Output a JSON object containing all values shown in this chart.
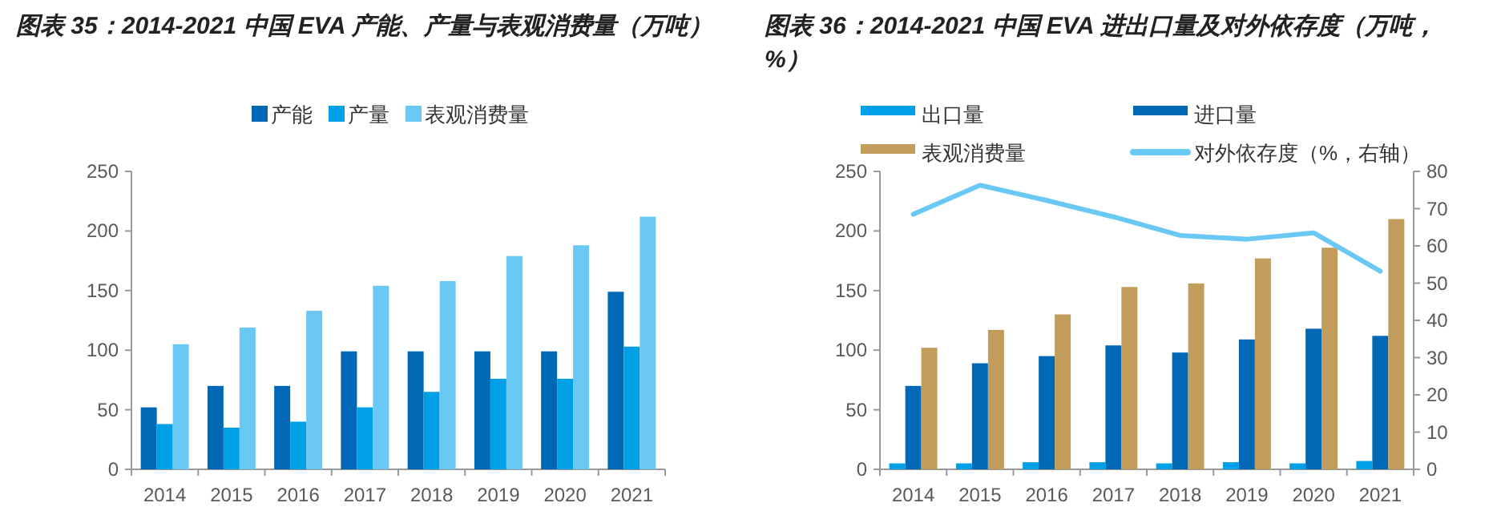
{
  "chart_data": [
    {
      "type": "bar",
      "title": "图表 35：2014-2021 中国 EVA 产能、产量与表观消费量（万吨）",
      "categories": [
        "2014",
        "2015",
        "2016",
        "2017",
        "2018",
        "2019",
        "2020",
        "2021"
      ],
      "series": [
        {
          "name": "产能",
          "color": "#0068b5",
          "values": [
            52,
            70,
            70,
            99,
            99,
            99,
            99,
            149
          ]
        },
        {
          "name": "产量",
          "color": "#00a0e6",
          "values": [
            38,
            35,
            40,
            52,
            65,
            76,
            76,
            103
          ]
        },
        {
          "name": "表观消费量",
          "color": "#6ac8f5",
          "values": [
            105,
            119,
            133,
            154,
            158,
            179,
            188,
            212
          ]
        }
      ],
      "ylim": [
        0,
        250
      ],
      "yticks": [
        0,
        50,
        100,
        150,
        200,
        250
      ],
      "grid": false,
      "legend": "top"
    },
    {
      "type": "bar",
      "title": "图表 36：2014-2021 中国 EVA 进出口量及对外依存度（万吨，%）",
      "categories": [
        "2014",
        "2015",
        "2016",
        "2017",
        "2018",
        "2019",
        "2020",
        "2021"
      ],
      "series": [
        {
          "name": "出口量",
          "color": "#00a0e6",
          "values": [
            5,
            5,
            6,
            6,
            5,
            6,
            5,
            7
          ]
        },
        {
          "name": "进口量",
          "color": "#0068b5",
          "values": [
            70,
            89,
            95,
            104,
            98,
            109,
            118,
            112
          ]
        },
        {
          "name": "表观消费量",
          "color": "#c19c5b",
          "values": [
            102,
            117,
            130,
            153,
            156,
            177,
            186,
            210
          ]
        },
        {
          "name": "对外依存度（%，右轴）",
          "type": "line",
          "axis": "y2",
          "color": "#6ac8f5",
          "values": [
            68.5,
            76.3,
            72.2,
            67.8,
            62.8,
            61.8,
            63.5,
            53.2
          ]
        }
      ],
      "ylim": [
        0,
        250
      ],
      "yticks": [
        0,
        50,
        100,
        150,
        200,
        250
      ],
      "y2lim": [
        0,
        80
      ],
      "y2ticks": [
        0,
        10,
        20,
        30,
        40,
        50,
        60,
        70,
        80
      ],
      "grid": false,
      "legend": "top"
    }
  ]
}
